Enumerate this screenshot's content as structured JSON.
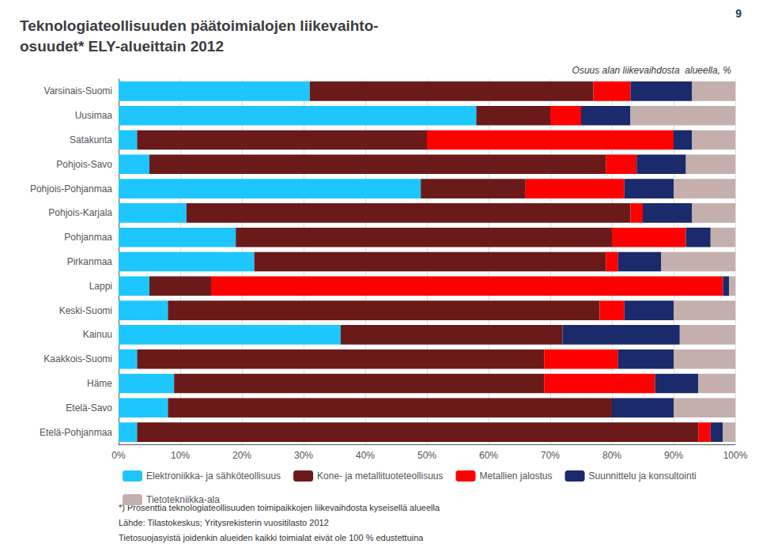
{
  "chart_data": {
    "type": "bar",
    "orientation": "horizontal",
    "stacked": true,
    "title": "Teknologiateollisuuden päätoimialojen liikevaihto-\nosuudet* ELY-alueittain 2012",
    "subtitle": "Osuus alan liikevaihdosta  alueella, %",
    "categories": [
      "Varsinais-Suomi",
      "Uusimaa",
      "Satakunta",
      "Pohjois-Savo",
      "Pohjois-Pohjanmaa",
      "Pohjois-Karjala",
      "Pohjanmaa",
      "Pirkanmaa",
      "Lappi",
      "Keski-Suomi",
      "Kainuu",
      "Kaakkois-Suomi",
      "Häme",
      "Etelä-Savo",
      "Etelä-Pohjanmaa"
    ],
    "series": [
      {
        "name": "Elektroniikka- ja sähköteollisuus",
        "color": "#1EC6FF",
        "values": [
          31,
          58,
          3,
          5,
          49,
          11,
          19,
          22,
          5,
          8,
          36,
          3,
          9,
          8,
          3
        ]
      },
      {
        "name": "Kone- ja metallituoteteollisuus",
        "color": "#6B1A1A",
        "values": [
          46,
          12,
          47,
          74,
          17,
          72,
          61,
          57,
          10,
          70,
          36,
          66,
          60,
          72,
          91
        ]
      },
      {
        "name": "Metallien jalostus",
        "color": "#FF0000",
        "values": [
          6,
          5,
          40,
          5,
          16,
          2,
          12,
          2,
          83,
          4,
          0,
          12,
          18,
          0,
          2
        ]
      },
      {
        "name": "Suunnittelu ja konsultointi",
        "color": "#1B2A6B",
        "values": [
          10,
          8,
          3,
          8,
          8,
          8,
          4,
          7,
          1,
          8,
          19,
          9,
          7,
          10,
          2
        ]
      },
      {
        "name": "Tietotekniikka-ala",
        "color": "#C4AFAD",
        "values": [
          7,
          17,
          7,
          8,
          10,
          7,
          4,
          12,
          1,
          10,
          9,
          10,
          6,
          10,
          2
        ]
      }
    ],
    "xlim": [
      0,
      100
    ],
    "xticks": [
      {
        "value": 0,
        "label": "0%"
      },
      {
        "value": 10,
        "label": "10%"
      },
      {
        "value": 20,
        "label": "20%"
      },
      {
        "value": 30,
        "label": "30%"
      },
      {
        "value": 40,
        "label": "40%"
      },
      {
        "value": 50,
        "label": "50%"
      },
      {
        "value": 60,
        "label": "60%"
      },
      {
        "value": 70,
        "label": "70%"
      },
      {
        "value": 80,
        "label": "80%"
      },
      {
        "value": 90,
        "label": "90%"
      },
      {
        "value": 100,
        "label": "100%"
      }
    ],
    "grid": true,
    "legend": "bottom",
    "annotations": [
      "*) Prosenttia teknologiateollisuuden toimipaikkojen liikevaihdosta kyseisellä alueella",
      "Lähde: Tilastokeskus; Yritysrekisterin vuositilasto 2012",
      "Tietosuojasyistä joidenkin alueiden kaikki toimialat eivät ole 100 % edustettuina",
      "9"
    ]
  }
}
